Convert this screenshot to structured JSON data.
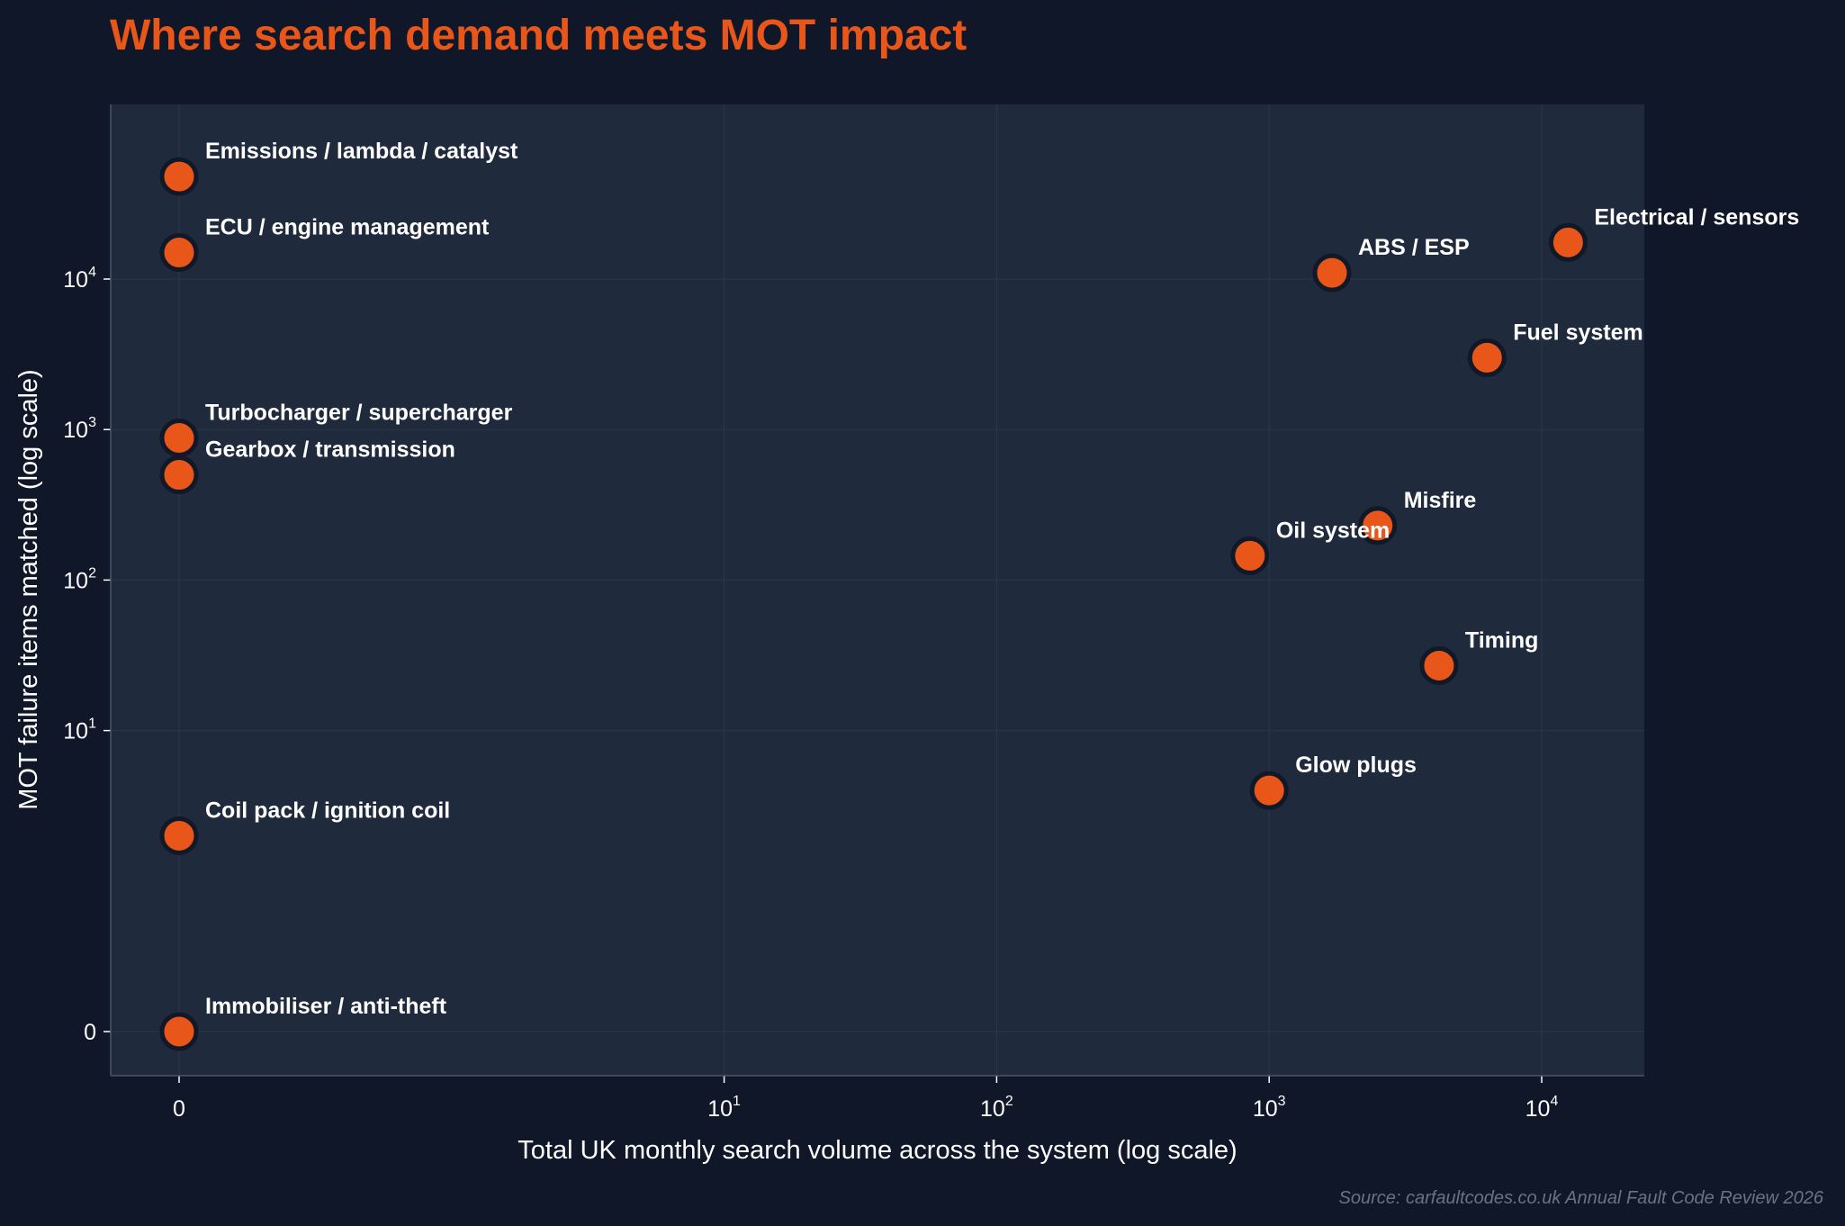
{
  "chart_data": {
    "type": "scatter",
    "title": "Where search demand meets MOT impact",
    "xlabel": "Total UK monthly search volume across the system (log scale)",
    "ylabel": "MOT failure items matched (log scale)",
    "x_scale": "symlog",
    "y_scale": "symlog",
    "x_ticks": [
      {
        "value": 0,
        "base": "0",
        "exp": ""
      },
      {
        "value": 10,
        "base": "10",
        "exp": "1"
      },
      {
        "value": 100,
        "base": "10",
        "exp": "2"
      },
      {
        "value": 1000,
        "base": "10",
        "exp": "3"
      },
      {
        "value": 10000,
        "base": "10",
        "exp": "4"
      }
    ],
    "y_ticks": [
      {
        "value": 0,
        "base": "0",
        "exp": ""
      },
      {
        "value": 10,
        "base": "10",
        "exp": "1"
      },
      {
        "value": 100,
        "base": "10",
        "exp": "2"
      },
      {
        "value": 1000,
        "base": "10",
        "exp": "3"
      },
      {
        "value": 10000,
        "base": "10",
        "exp": "4"
      }
    ],
    "grid": true,
    "colors": {
      "background": "#0f1729",
      "plot_area": "#1f2a3c",
      "marker": "#e8561a",
      "marker_edge": "#111827",
      "title": "#e8561a",
      "text": "#ffffff",
      "grid": "#2c3749",
      "source": "#6a7283"
    },
    "points": [
      {
        "label": "Emissions / lambda / catalyst",
        "x": 0,
        "y": 48000
      },
      {
        "label": "ECU / engine management",
        "x": 0,
        "y": 15000
      },
      {
        "label": "Electrical / sensors",
        "x": 12500,
        "y": 17500
      },
      {
        "label": "ABS / ESP",
        "x": 1700,
        "y": 11000
      },
      {
        "label": "Fuel system",
        "x": 6300,
        "y": 3000
      },
      {
        "label": "Turbocharger / supercharger",
        "x": 0,
        "y": 880
      },
      {
        "label": "Gearbox / transmission",
        "x": 0,
        "y": 500
      },
      {
        "label": "Misfire",
        "x": 2500,
        "y": 230
      },
      {
        "label": "Oil system",
        "x": 850,
        "y": 145
      },
      {
        "label": "Timing",
        "x": 4200,
        "y": 27
      },
      {
        "label": "Glow plugs",
        "x": 1000,
        "y": 4
      },
      {
        "label": "Coil pack / ignition coil",
        "x": 0,
        "y": 2
      },
      {
        "label": "Immobiliser / anti-theft",
        "x": 0,
        "y": 0
      }
    ]
  },
  "source": "Source: carfaultcodes.co.uk Annual Fault Code Review 2026"
}
